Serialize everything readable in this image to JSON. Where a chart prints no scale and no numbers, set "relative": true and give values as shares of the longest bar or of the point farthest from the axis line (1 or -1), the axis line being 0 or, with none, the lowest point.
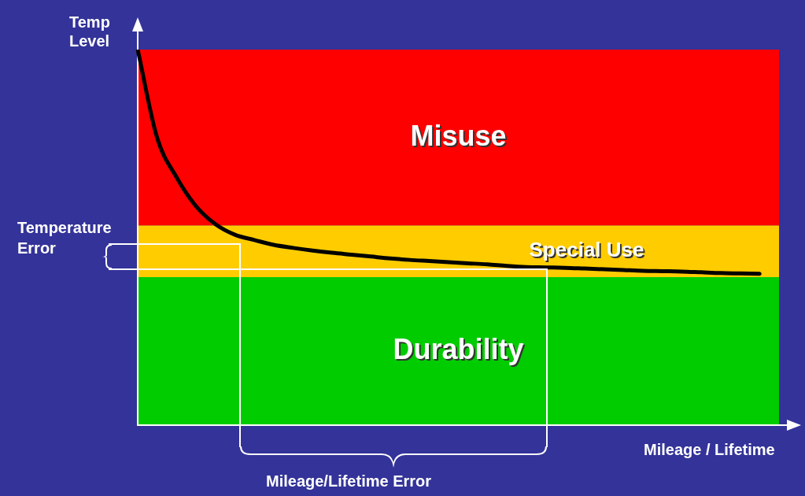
{
  "chart_data": {
    "type": "line",
    "relative": true,
    "xlabel": "Mileage / Lifetime",
    "ylabel": "Temp Level",
    "categories": [
      null,
      null,
      null,
      null,
      null,
      null,
      null,
      null,
      null,
      null,
      null,
      null,
      null,
      null,
      null,
      null,
      null,
      null,
      null,
      null,
      null,
      null,
      null,
      null,
      null,
      null,
      null,
      null,
      null,
      null,
      null,
      null,
      null,
      null
    ],
    "series": [
      {
        "color": "#000000",
        "values": [
          1.0,
          0.765,
          0.66,
          0.583,
          0.535,
          0.507,
          0.493,
          0.48,
          0.472,
          0.465,
          0.459,
          0.454,
          0.449,
          0.444,
          0.44,
          0.437,
          0.434,
          0.431,
          0.428,
          0.424,
          0.421,
          0.42,
          0.419,
          0.417,
          0.415,
          0.413,
          0.411,
          0.41,
          0.409,
          0.407,
          0.405,
          0.404,
          0.403,
          null
        ]
      }
    ],
    "bands": [
      {
        "axis": "y",
        "from": 0,
        "to": 0.394,
        "label": "Durability",
        "color": "#00cc00"
      },
      {
        "axis": "y",
        "from": 0.394,
        "to": 0.532,
        "label": "Special Use",
        "color": "#ffcc00"
      },
      {
        "axis": "y",
        "from": 0.532,
        "to": 1.0,
        "label": "Misuse",
        "color": "#ff0000"
      }
    ],
    "annotations": [
      "Temperature Error",
      "Mileage/Lifetime Error"
    ],
    "legend": false,
    "marker": "none",
    "line_style": "solid"
  }
}
